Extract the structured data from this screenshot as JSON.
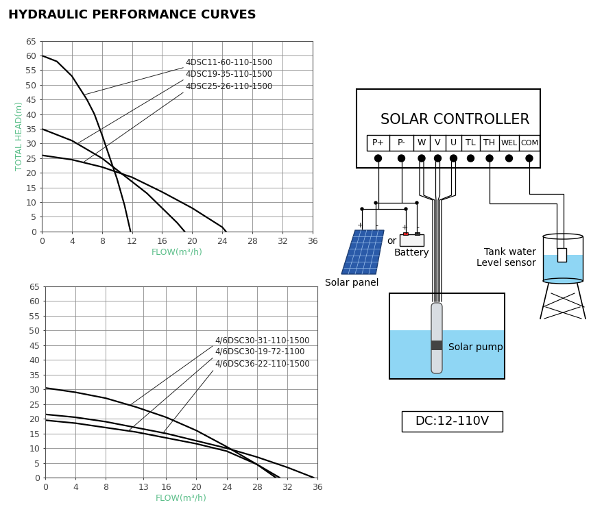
{
  "title": "HYDRAULIC PERFORMANCE CURVES",
  "chart_data": [
    {
      "type": "line",
      "xlabel": "FLOW(m³/h)",
      "ylabel": "TOTAL HEAD(m)",
      "xlim": [
        0,
        36
      ],
      "ylim": [
        0,
        65
      ],
      "xticks": [
        0,
        4,
        8,
        12,
        16,
        20,
        24,
        28,
        32,
        36
      ],
      "yticks": [
        0,
        5,
        10,
        15,
        20,
        25,
        30,
        35,
        40,
        45,
        50,
        55,
        60,
        65
      ],
      "grid": true,
      "series": [
        {
          "name": "4DSC11-60-110-1500",
          "color": "#000000",
          "x": [
            0,
            2,
            4,
            6,
            7,
            8,
            9,
            10,
            11,
            11.8
          ],
          "values": [
            60,
            58,
            53,
            45,
            40,
            33,
            25.5,
            18,
            9,
            0
          ]
        },
        {
          "name": "4DSC19-35-110-1500",
          "color": "#000000",
          "x": [
            0,
            4,
            8,
            12,
            14,
            16,
            18,
            19
          ],
          "values": [
            35,
            31,
            25,
            17,
            13,
            8,
            3,
            0
          ]
        },
        {
          "name": "4DSC25-26-110-1500",
          "color": "#000000",
          "x": [
            0,
            4,
            8,
            12,
            14,
            16,
            20,
            24,
            24.5
          ],
          "values": [
            26,
            24.5,
            22,
            18.5,
            16,
            13.5,
            8,
            1.5,
            0
          ]
        }
      ]
    },
    {
      "type": "line",
      "xlabel": "FLOW(m³/h)",
      "xlim": [
        0,
        36
      ],
      "ylim": [
        0,
        65
      ],
      "xticks": [
        0,
        4,
        8,
        13,
        16,
        20,
        24,
        28,
        32,
        36
      ],
      "yticks": [
        0,
        5,
        10,
        15,
        20,
        25,
        30,
        35,
        40,
        45,
        50,
        55,
        60,
        65
      ],
      "grid": true,
      "series": [
        {
          "name": "4/6DSC30-31-110-1500",
          "color": "#000000",
          "x": [
            0,
            4,
            8,
            12,
            16,
            20,
            24,
            28,
            31
          ],
          "values": [
            30.5,
            29,
            27,
            24,
            20.5,
            16,
            10.5,
            4.5,
            0
          ]
        },
        {
          "name": "4/6DSC30-19-72-1100",
          "color": "#000000",
          "x": [
            0,
            4,
            8,
            12,
            16,
            20,
            24,
            28,
            30.5
          ],
          "values": [
            19.5,
            18.5,
            17,
            15.5,
            13.5,
            11.5,
            9,
            4.5,
            0
          ]
        },
        {
          "name": "4/6DSC36-22-110-1500",
          "color": "#000000",
          "x": [
            0,
            4,
            8,
            12,
            16,
            20,
            24,
            28,
            32,
            35.5
          ],
          "values": [
            21.5,
            20.5,
            19,
            17,
            15,
            12.5,
            10,
            7,
            3.5,
            0
          ]
        }
      ]
    }
  ],
  "diagram": {
    "controller": "SOLAR CONTROLLER",
    "terminals": [
      "P+",
      "P-",
      "W",
      "V",
      "U",
      "TL",
      "TH",
      "WEL",
      "COM"
    ],
    "panel": "Solar panel",
    "panel_polarity": [
      "+",
      "-"
    ],
    "or": "or",
    "battery": "Battery",
    "battery_polarity": [
      "+",
      "-"
    ],
    "sensor": [
      "Tank water",
      "Level sensor"
    ],
    "pump": "Solar pump",
    "voltage": "DC:12-110V"
  }
}
